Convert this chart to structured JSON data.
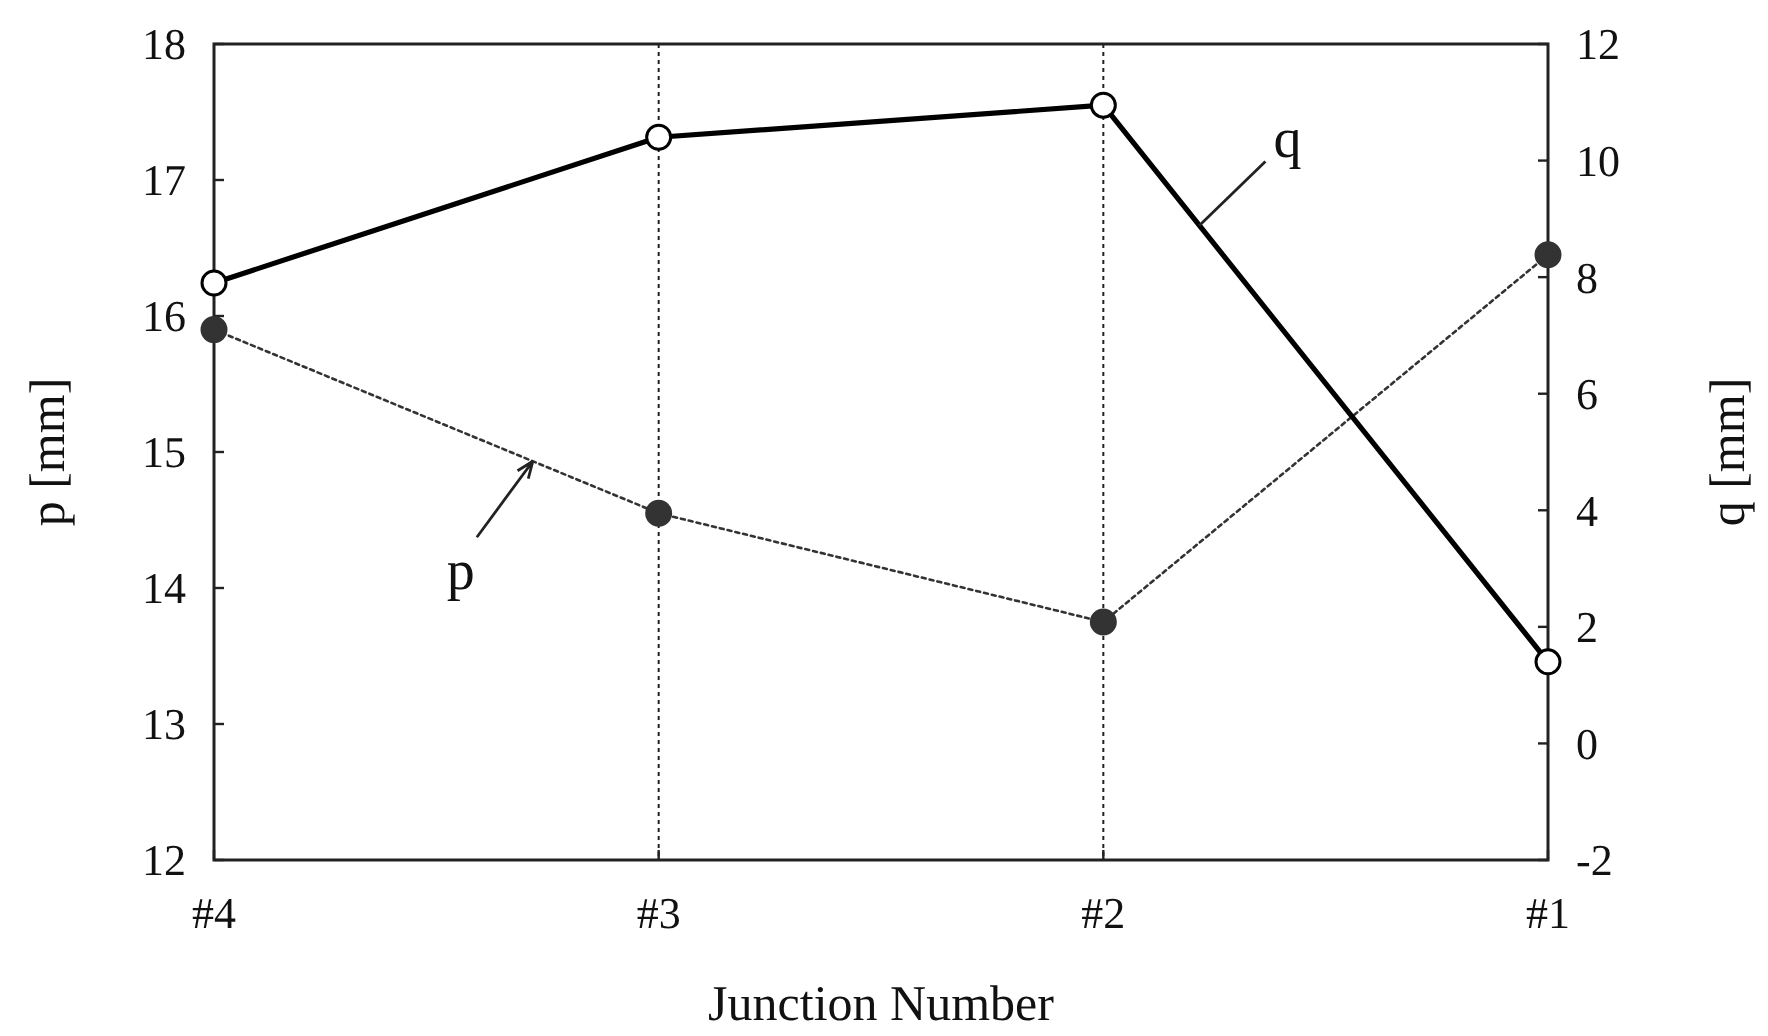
{
  "chart_data": {
    "type": "line",
    "xlabel": "Junction Number",
    "ylabel": "p [mm]",
    "y2label": "q [mm]",
    "categories": [
      "#4",
      "#3",
      "#2",
      "#1"
    ],
    "series": [
      {
        "name": "p",
        "color": "#333333",
        "values": [
          15.9,
          14.55,
          13.75,
          16.45
        ],
        "marker": "circle",
        "line_style": "dotted"
      },
      {
        "name": "q",
        "color": "#000000",
        "colors": [
          "#ffffff",
          "#ffffff",
          "#ffffff",
          "#ffffff"
        ],
        "values": [
          7.9,
          10.4,
          10.95,
          1.4
        ],
        "axis": "y2",
        "marker": "circle",
        "line_style": "solid"
      }
    ],
    "ylim": [
      12,
      18
    ],
    "yticks": [
      12,
      13,
      14,
      15,
      16,
      17,
      18
    ],
    "y2lim": [
      -2,
      12
    ],
    "y2ticks": [
      -2,
      0,
      2,
      4,
      6,
      8,
      10,
      12
    ],
    "grid": "x",
    "legend": false
  }
}
